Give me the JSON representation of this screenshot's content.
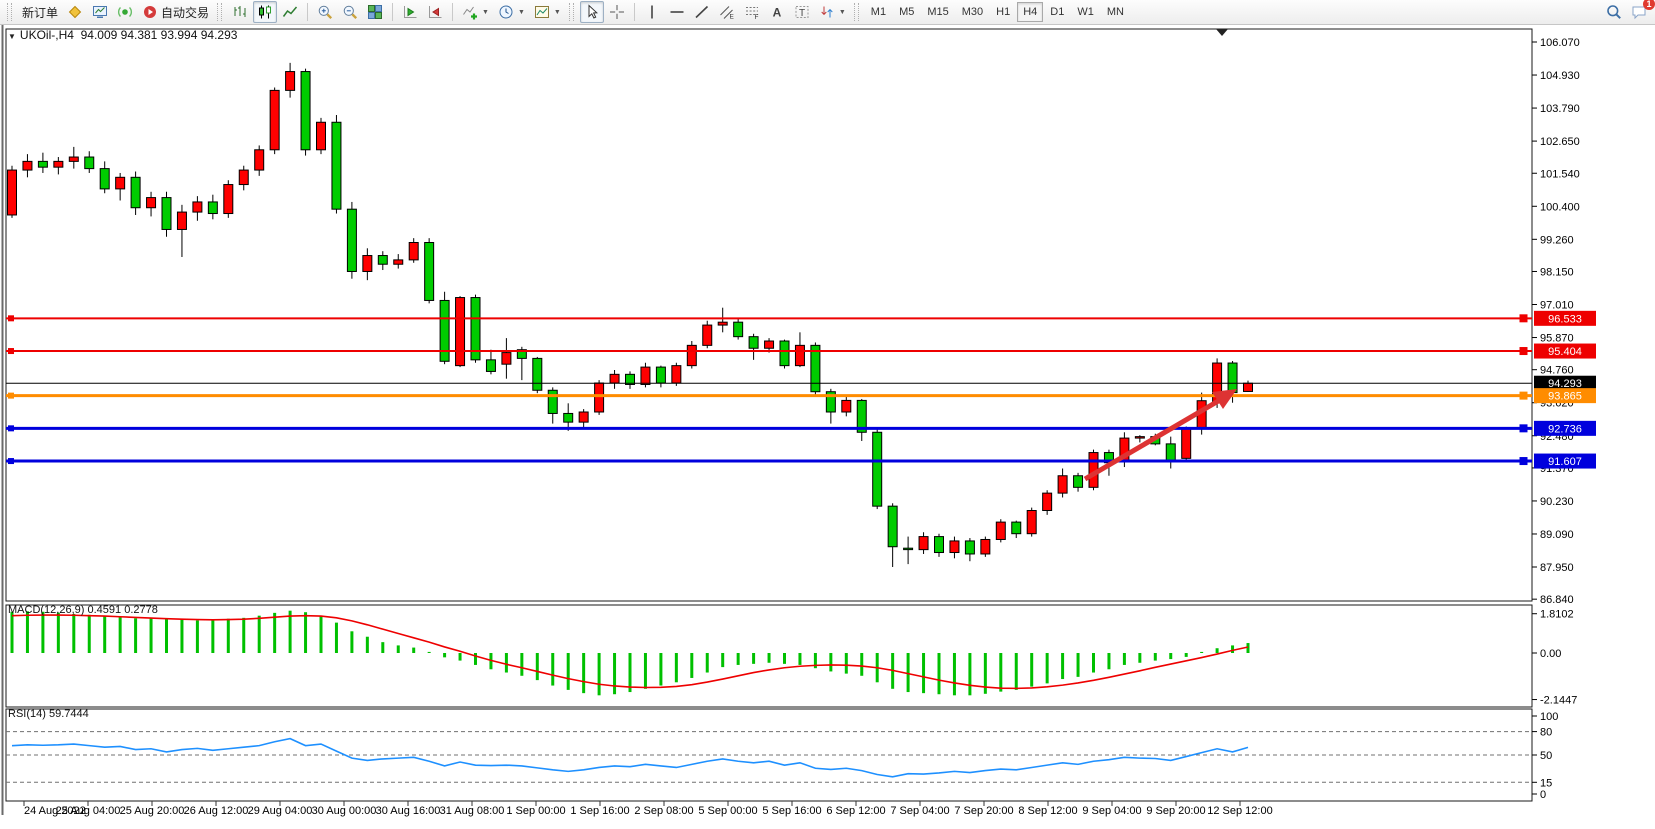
{
  "toolbar": {
    "items": [
      {
        "kind": "grip"
      },
      {
        "kind": "button",
        "name": "new-order-button",
        "label": "新订单"
      },
      {
        "kind": "button",
        "name": "gold-symbol-icon-button",
        "icon": "gold"
      },
      {
        "kind": "button",
        "name": "charts-window-icon-button",
        "icon": "monitor"
      },
      {
        "kind": "button",
        "name": "market-signal-icon-button",
        "icon": "signal"
      },
      {
        "kind": "button",
        "name": "auto-trading-button",
        "icon": "autotrade",
        "label": "自动交易"
      },
      {
        "kind": "grip"
      },
      {
        "kind": "button",
        "name": "bar-chart-button",
        "icon": "bars"
      },
      {
        "kind": "button",
        "name": "candlestick-chart-button",
        "icon": "candles",
        "active": true
      },
      {
        "kind": "button",
        "name": "line-chart-button",
        "icon": "linechart"
      },
      {
        "kind": "sep"
      },
      {
        "kind": "button",
        "name": "zoom-in-button",
        "icon": "zoomin"
      },
      {
        "kind": "button",
        "name": "zoom-out-button",
        "icon": "zoomout"
      },
      {
        "kind": "button",
        "name": "tile-windows-button",
        "icon": "grid"
      },
      {
        "kind": "sep"
      },
      {
        "kind": "button",
        "name": "chart-shift-button",
        "icon": "shift"
      },
      {
        "kind": "button",
        "name": "auto-scroll-button",
        "icon": "autoscroll"
      },
      {
        "kind": "sep"
      },
      {
        "kind": "button",
        "name": "indicators-button",
        "icon": "indicator",
        "caret": true
      },
      {
        "kind": "button",
        "name": "periods-button",
        "icon": "clock",
        "caret": true
      },
      {
        "kind": "button",
        "name": "templates-button",
        "icon": "template",
        "caret": true
      },
      {
        "kind": "grip"
      },
      {
        "kind": "button",
        "name": "cursor-button",
        "icon": "cursor",
        "active": true
      },
      {
        "kind": "button",
        "name": "crosshair-button",
        "icon": "crosshair"
      },
      {
        "kind": "sep"
      },
      {
        "kind": "button",
        "name": "vertical-line-button",
        "icon": "vline"
      },
      {
        "kind": "button",
        "name": "horizontal-line-button",
        "icon": "hline"
      },
      {
        "kind": "button",
        "name": "trendline-button",
        "icon": "tline"
      },
      {
        "kind": "button",
        "name": "equidistant-channel-button",
        "icon": "channel"
      },
      {
        "kind": "button",
        "name": "fibonacci-button",
        "icon": "fib"
      },
      {
        "kind": "button",
        "name": "text-button",
        "icon": "textA"
      },
      {
        "kind": "button",
        "name": "text-label-button",
        "icon": "textT"
      },
      {
        "kind": "button",
        "name": "arrows-button",
        "icon": "arrows",
        "caret": true
      },
      {
        "kind": "grip"
      }
    ],
    "timeframes": [
      "M1",
      "M5",
      "M15",
      "M30",
      "H1",
      "H4",
      "D1",
      "W1",
      "MN"
    ],
    "active_timeframe": "H4",
    "right_items": [
      {
        "name": "search-button",
        "icon": "search"
      },
      {
        "name": "notifications-button",
        "icon": "chat",
        "badge": "1"
      }
    ]
  },
  "chart_data": {
    "type": "candlestick",
    "title": "UKOil-,H4",
    "ohlc_line": "94.009 94.381 93.994 94.293",
    "open": "94.009",
    "high": "94.381",
    "low": "93.994",
    "close": "94.293",
    "ylim": [
      86.84,
      106.07
    ],
    "y_ticks": [
      "106.070",
      "104.930",
      "103.790",
      "102.650",
      "101.540",
      "100.400",
      "99.260",
      "98.150",
      "97.010",
      "95.870",
      "94.760",
      "93.620",
      "92.480",
      "91.370",
      "90.230",
      "89.090",
      "87.950",
      "86.840"
    ],
    "x_labels": [
      "24 Aug 2022",
      "25 Aug 04:00",
      "25 Aug 20:00",
      "26 Aug 12:00",
      "29 Aug 04:00",
      "30 Aug 00:00",
      "30 Aug 16:00",
      "31 Aug 08:00",
      "1 Sep 00:00",
      "1 Sep 16:00",
      "2 Sep 08:00",
      "5 Sep 00:00",
      "5 Sep 16:00",
      "6 Sep 12:00",
      "7 Sep 04:00",
      "7 Sep 20:00",
      "8 Sep 12:00",
      "9 Sep 04:00",
      "9 Sep 20:00",
      "12 Sep 12:00"
    ],
    "colors": {
      "bull": "#ff0000",
      "bear": "#00cc00",
      "wick": "#000000",
      "background": "#ffffff",
      "frame": "#1a1a1a"
    },
    "candles": [
      [
        100.1,
        101.8,
        100.0,
        101.65
      ],
      [
        101.65,
        102.2,
        101.4,
        101.95
      ],
      [
        101.95,
        102.25,
        101.55,
        101.75
      ],
      [
        101.75,
        102.1,
        101.5,
        101.95
      ],
      [
        101.95,
        102.45,
        101.7,
        102.1
      ],
      [
        102.1,
        102.3,
        101.55,
        101.7
      ],
      [
        101.7,
        101.95,
        100.85,
        101.0
      ],
      [
        101.0,
        101.55,
        100.6,
        101.4
      ],
      [
        101.4,
        101.6,
        100.1,
        100.35
      ],
      [
        100.35,
        100.9,
        100.05,
        100.7
      ],
      [
        100.7,
        100.9,
        99.35,
        99.6
      ],
      [
        99.6,
        100.45,
        98.65,
        100.2
      ],
      [
        100.2,
        100.75,
        99.9,
        100.55
      ],
      [
        100.55,
        100.8,
        99.95,
        100.15
      ],
      [
        100.15,
        101.3,
        100.0,
        101.15
      ],
      [
        101.15,
        101.8,
        100.95,
        101.65
      ],
      [
        101.65,
        102.5,
        101.45,
        102.35
      ],
      [
        102.35,
        104.5,
        102.2,
        104.4
      ],
      [
        104.4,
        105.35,
        104.15,
        105.05
      ],
      [
        105.05,
        105.15,
        102.15,
        102.35
      ],
      [
        102.35,
        103.45,
        102.2,
        103.3
      ],
      [
        103.3,
        103.55,
        100.15,
        100.3
      ],
      [
        100.3,
        100.55,
        97.9,
        98.15
      ],
      [
        98.15,
        98.95,
        97.85,
        98.7
      ],
      [
        98.7,
        98.85,
        98.2,
        98.4
      ],
      [
        98.4,
        98.75,
        98.25,
        98.55
      ],
      [
        98.55,
        99.3,
        98.45,
        99.15
      ],
      [
        99.15,
        99.3,
        97.05,
        97.15
      ],
      [
        97.15,
        97.45,
        94.95,
        95.05
      ],
      [
        94.9,
        97.3,
        94.85,
        97.25
      ],
      [
        97.25,
        97.35,
        95.0,
        95.1
      ],
      [
        95.1,
        95.45,
        94.6,
        94.7
      ],
      [
        94.95,
        95.85,
        94.45,
        95.35
      ],
      [
        95.45,
        95.55,
        94.4,
        95.15
      ],
      [
        95.15,
        95.2,
        93.95,
        94.05
      ],
      [
        94.05,
        94.15,
        92.9,
        93.25
      ],
      [
        93.25,
        93.6,
        92.65,
        92.95
      ],
      [
        92.95,
        93.4,
        92.7,
        93.3
      ],
      [
        93.3,
        94.4,
        93.2,
        94.3
      ],
      [
        94.3,
        94.75,
        94.1,
        94.6
      ],
      [
        94.6,
        94.7,
        94.1,
        94.25
      ],
      [
        94.25,
        95.0,
        94.15,
        94.85
      ],
      [
        94.85,
        94.9,
        94.15,
        94.3
      ],
      [
        94.3,
        95.0,
        94.2,
        94.9
      ],
      [
        94.9,
        95.75,
        94.8,
        95.6
      ],
      [
        95.6,
        96.45,
        95.5,
        96.3
      ],
      [
        96.3,
        96.9,
        96.05,
        96.4
      ],
      [
        96.4,
        96.55,
        95.8,
        95.9
      ],
      [
        95.9,
        96.0,
        95.1,
        95.5
      ],
      [
        95.5,
        95.85,
        95.35,
        95.75
      ],
      [
        95.75,
        95.8,
        94.8,
        94.9
      ],
      [
        94.9,
        96.05,
        94.85,
        95.6
      ],
      [
        95.6,
        95.7,
        93.9,
        94.0
      ],
      [
        94.0,
        94.1,
        92.9,
        93.3
      ],
      [
        93.3,
        93.85,
        93.15,
        93.7
      ],
      [
        93.7,
        93.75,
        92.3,
        92.6
      ],
      [
        92.6,
        92.7,
        89.95,
        90.05
      ],
      [
        90.05,
        90.15,
        87.95,
        88.65
      ],
      [
        88.6,
        89.0,
        88.05,
        88.55
      ],
      [
        88.55,
        89.15,
        88.4,
        89.0
      ],
      [
        89.0,
        89.1,
        88.3,
        88.45
      ],
      [
        88.45,
        89.0,
        88.25,
        88.85
      ],
      [
        88.85,
        88.95,
        88.15,
        88.4
      ],
      [
        88.4,
        89.0,
        88.3,
        88.9
      ],
      [
        88.9,
        89.6,
        88.8,
        89.5
      ],
      [
        89.5,
        89.55,
        88.95,
        89.1
      ],
      [
        89.1,
        90.0,
        89.0,
        89.9
      ],
      [
        89.9,
        90.6,
        89.75,
        90.5
      ],
      [
        90.5,
        91.35,
        90.35,
        91.1
      ],
      [
        91.1,
        91.2,
        90.55,
        90.7
      ],
      [
        90.7,
        92.0,
        90.6,
        91.9
      ],
      [
        91.9,
        92.0,
        91.1,
        91.55
      ],
      [
        91.61,
        92.6,
        91.4,
        92.4
      ],
      [
        92.4,
        92.5,
        92.25,
        92.45
      ],
      [
        92.45,
        92.55,
        92.15,
        92.2
      ],
      [
        92.2,
        92.45,
        91.35,
        91.62
      ],
      [
        91.7,
        92.8,
        91.6,
        92.73
      ],
      [
        92.76,
        93.97,
        92.52,
        93.69
      ],
      [
        93.62,
        95.15,
        93.44,
        94.99
      ],
      [
        94.99,
        95.06,
        93.62,
        93.97
      ],
      [
        94.009,
        94.381,
        93.994,
        94.293
      ]
    ],
    "price_lines": [
      {
        "value": "96.533",
        "color": "#ee0000",
        "width": 2
      },
      {
        "value": "95.404",
        "color": "#ee0000",
        "width": 2
      },
      {
        "value": "94.293",
        "color": "#000000",
        "width": 1
      },
      {
        "value": "93.865",
        "color": "#ff8c00",
        "width": 3
      },
      {
        "value": "92.736",
        "color": "#0000dd",
        "width": 3
      },
      {
        "value": "91.607",
        "color": "#0000dd",
        "width": 3
      }
    ],
    "macd": {
      "label": "MACD(12,26,9)",
      "main_value": "0.4591",
      "signal_value": "0.2778",
      "y_ticks": [
        "1.8102",
        "0.00",
        "-2.1447"
      ],
      "hist_color": "#00c000",
      "signal_color": "#ee0000",
      "hist": [
        1.9,
        1.92,
        1.9,
        1.86,
        1.8,
        1.76,
        1.72,
        1.66,
        1.6,
        1.62,
        1.58,
        1.55,
        1.5,
        1.54,
        1.58,
        1.62,
        1.72,
        1.85,
        1.95,
        1.88,
        1.7,
        1.4,
        1.0,
        0.75,
        0.5,
        0.35,
        0.25,
        0.05,
        -0.2,
        -0.35,
        -0.55,
        -0.75,
        -0.9,
        -1.05,
        -1.25,
        -1.5,
        -1.7,
        -1.85,
        -1.95,
        -1.9,
        -1.8,
        -1.65,
        -1.5,
        -1.35,
        -1.15,
        -0.9,
        -0.65,
        -0.55,
        -0.5,
        -0.45,
        -0.5,
        -0.55,
        -0.7,
        -0.85,
        -0.95,
        -1.05,
        -1.35,
        -1.65,
        -1.8,
        -1.85,
        -1.9,
        -1.95,
        -1.95,
        -1.88,
        -1.78,
        -1.7,
        -1.55,
        -1.4,
        -1.2,
        -1.1,
        -0.9,
        -0.75,
        -0.55,
        -0.45,
        -0.35,
        -0.28,
        -0.18,
        0.05,
        0.22,
        0.35,
        0.4591
      ],
      "signal": [
        1.72,
        1.74,
        1.75,
        1.75,
        1.74,
        1.72,
        1.7,
        1.67,
        1.64,
        1.61,
        1.58,
        1.56,
        1.54,
        1.53,
        1.54,
        1.56,
        1.6,
        1.65,
        1.7,
        1.72,
        1.7,
        1.62,
        1.48,
        1.3,
        1.1,
        0.9,
        0.7,
        0.5,
        0.28,
        0.08,
        -0.14,
        -0.34,
        -0.52,
        -0.68,
        -0.85,
        -1.02,
        -1.18,
        -1.32,
        -1.44,
        -1.52,
        -1.57,
        -1.59,
        -1.58,
        -1.54,
        -1.46,
        -1.34,
        -1.2,
        -1.05,
        -0.9,
        -0.78,
        -0.68,
        -0.61,
        -0.57,
        -0.55,
        -0.56,
        -0.6,
        -0.68,
        -0.8,
        -0.95,
        -1.1,
        -1.25,
        -1.38,
        -1.49,
        -1.57,
        -1.62,
        -1.63,
        -1.61,
        -1.56,
        -1.48,
        -1.38,
        -1.26,
        -1.12,
        -0.97,
        -0.82,
        -0.66,
        -0.51,
        -0.36,
        -0.21,
        -0.05,
        0.12,
        0.2778
      ]
    },
    "rsi": {
      "label": "RSI(14)",
      "value": "59.7444",
      "levels": [
        "100",
        "80",
        "50",
        "15",
        "0"
      ],
      "dashed_levels": [
        80,
        50,
        15
      ],
      "color": "#1e90ff",
      "values": [
        62,
        63,
        62.5,
        63,
        64,
        62,
        60,
        61,
        57,
        58,
        54,
        57,
        58.5,
        56,
        58,
        60,
        62,
        67,
        71,
        62,
        64,
        55,
        46,
        43,
        45,
        46,
        47,
        42,
        36,
        41,
        37,
        36.5,
        37,
        36,
        33.5,
        31,
        29,
        31,
        34,
        36,
        35,
        38,
        36,
        34,
        38,
        42,
        45,
        42,
        40,
        42,
        37,
        40,
        33,
        31.5,
        33,
        30,
        25,
        22,
        26,
        25.5,
        27,
        29,
        27.5,
        30,
        32,
        31,
        34,
        37,
        40,
        38,
        42,
        44,
        47,
        46,
        45.5,
        43,
        48,
        53,
        58,
        54,
        59.7444
      ],
      "value_color": "#111111"
    },
    "annotations": [
      {
        "type": "arrow-up-right",
        "color": "#dd3333"
      }
    ]
  }
}
